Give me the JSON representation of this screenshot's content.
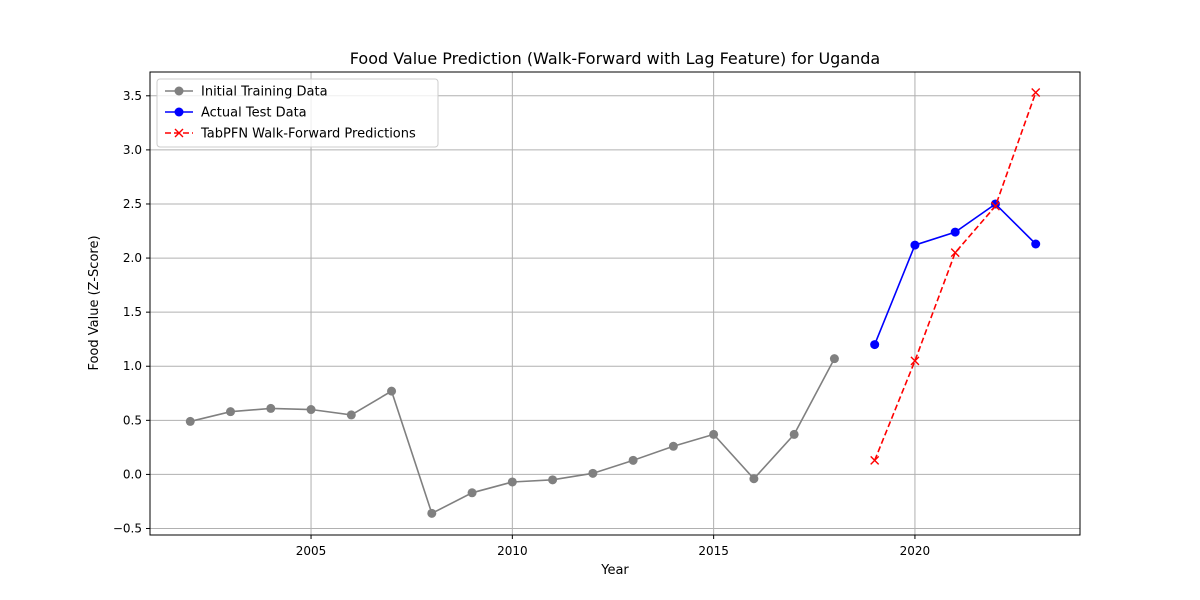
{
  "chart_data": {
    "type": "line",
    "title": "Food Value Prediction (Walk-Forward with Lag Feature) for Uganda",
    "xlabel": "Year",
    "ylabel": "Food Value (Z-Score)",
    "xlim": [
      2001.0,
      2024.1
    ],
    "ylim": [
      -0.56,
      3.72
    ],
    "xticks": [
      2005,
      2010,
      2015,
      2020
    ],
    "yticks": [
      -0.5,
      0.0,
      0.5,
      1.0,
      1.5,
      2.0,
      2.5,
      3.0,
      3.5
    ],
    "ytick_labels": [
      "−0.5",
      "0.0",
      "0.5",
      "1.0",
      "1.5",
      "2.0",
      "2.5",
      "3.0",
      "3.5"
    ],
    "grid": true,
    "legend_position": "top-left",
    "series": [
      {
        "name": "Initial Training Data",
        "color": "#808080",
        "marker": "circle",
        "line_style": "solid",
        "x": [
          2002,
          2003,
          2004,
          2005,
          2006,
          2007,
          2008,
          2009,
          2010,
          2011,
          2012,
          2013,
          2014,
          2015,
          2016,
          2017,
          2018
        ],
        "y": [
          0.49,
          0.58,
          0.61,
          0.6,
          0.55,
          0.77,
          -0.36,
          -0.17,
          -0.07,
          -0.05,
          0.01,
          0.13,
          0.26,
          0.37,
          -0.04,
          0.37,
          1.07
        ]
      },
      {
        "name": "Actual Test Data",
        "color": "#0000ff",
        "marker": "circle",
        "line_style": "solid",
        "x": [
          2019,
          2020,
          2021,
          2022,
          2023
        ],
        "y": [
          1.2,
          2.12,
          2.24,
          2.5,
          2.13
        ]
      },
      {
        "name": "TabPFN Walk-Forward Predictions",
        "color": "#ff0000",
        "marker": "x",
        "line_style": "dashed",
        "x": [
          2019,
          2020,
          2021,
          2022,
          2023
        ],
        "y": [
          0.13,
          1.05,
          2.05,
          2.48,
          3.53
        ]
      }
    ]
  }
}
